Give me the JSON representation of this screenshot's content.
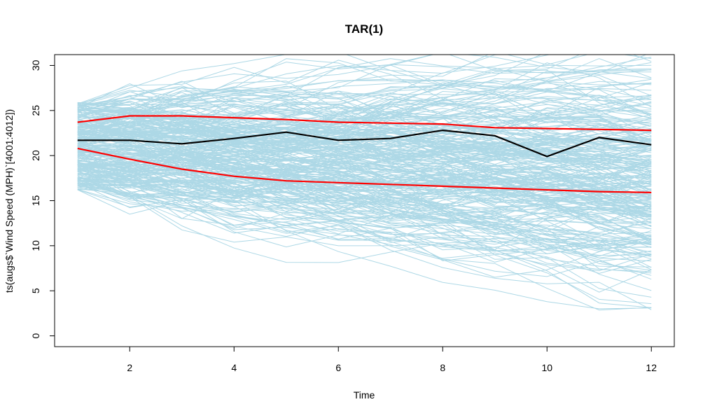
{
  "chart_data": {
    "type": "line",
    "title": "TAR(1)",
    "xlabel": "Time",
    "ylabel": "ts(augs$`Wind Speed (MPH)`[4001:4012])",
    "xlim": [
      0.56,
      12.44
    ],
    "ylim": [
      -1.2,
      31.2
    ],
    "x_ticks": [
      2,
      4,
      6,
      8,
      10,
      12
    ],
    "y_ticks": [
      0,
      5,
      10,
      15,
      20,
      25,
      30
    ],
    "grid": false,
    "legend": "none",
    "x": [
      1,
      2,
      3,
      4,
      5,
      6,
      7,
      8,
      9,
      10,
      11,
      12
    ],
    "series": [
      {
        "role": "observed",
        "color": "#000000",
        "values": [
          21.7,
          21.7,
          21.3,
          21.9,
          22.6,
          21.7,
          21.9,
          22.8,
          22.2,
          19.9,
          22.0,
          21.2
        ]
      },
      {
        "role": "upper-band",
        "color": "#ff0000",
        "values": [
          23.7,
          24.4,
          24.4,
          24.2,
          24.0,
          23.7,
          23.6,
          23.5,
          23.1,
          23.0,
          22.9,
          22.8
        ]
      },
      {
        "role": "lower-band",
        "color": "#ff0000",
        "values": [
          20.8,
          19.6,
          18.5,
          17.7,
          17.2,
          17.0,
          16.8,
          16.6,
          16.4,
          16.2,
          16.0,
          15.9
        ]
      }
    ],
    "simulated_paths": {
      "count": 300,
      "color": "#add8e6",
      "start_range": [
        16.2,
        25.9
      ]
    }
  }
}
